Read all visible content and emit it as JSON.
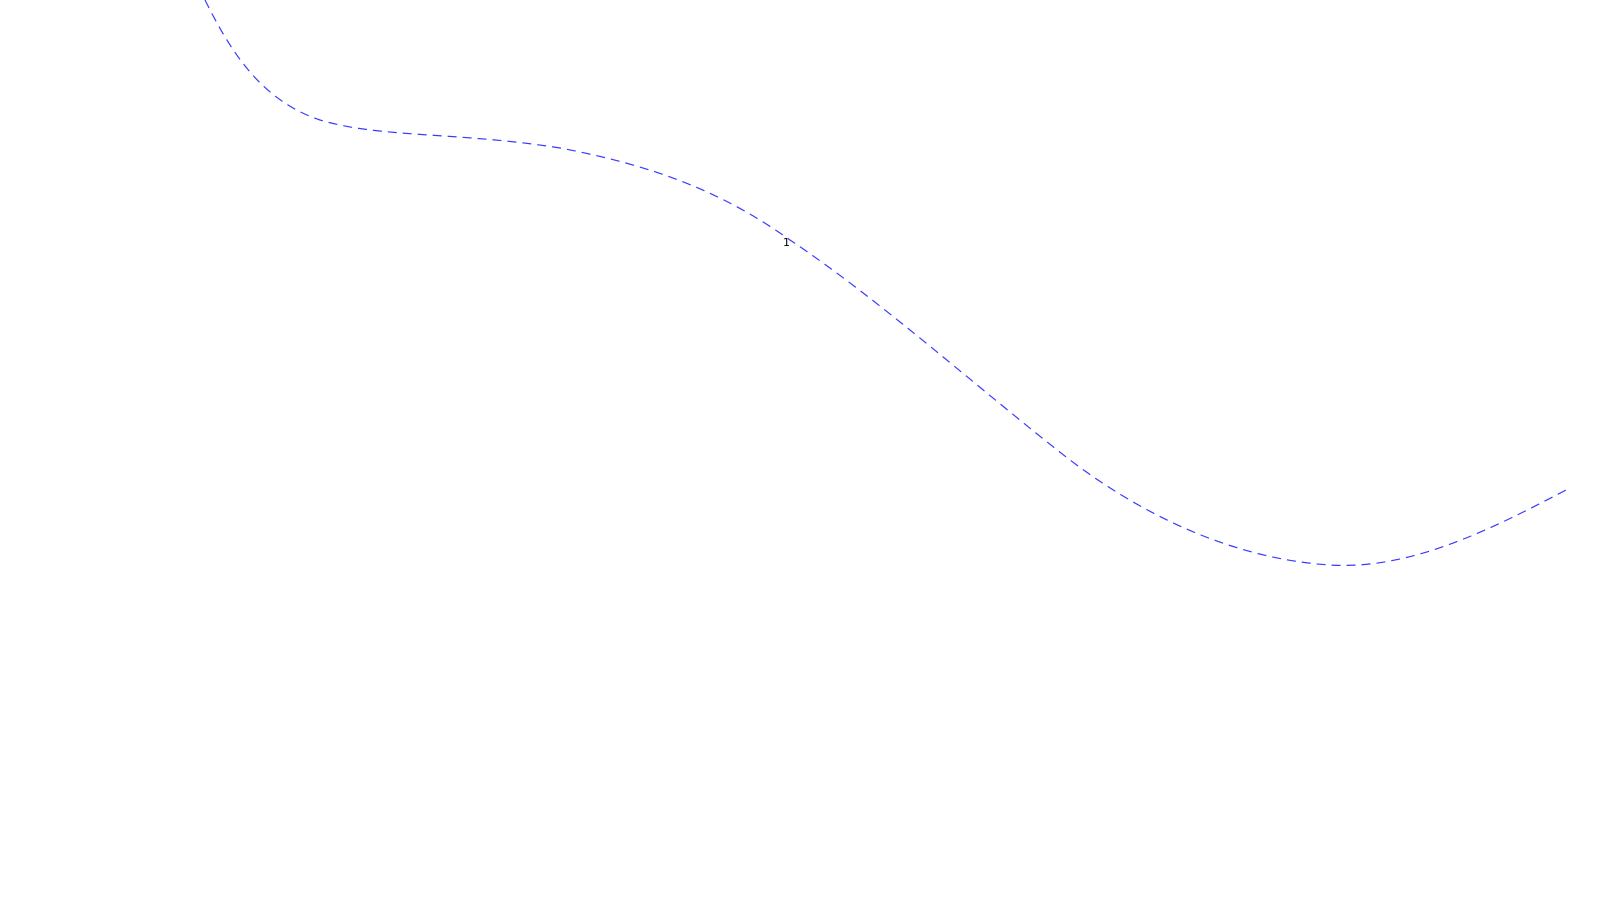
{
  "diagram": {
    "curve": {
      "style": "dashed",
      "color": "#3a3aff"
    },
    "label": {
      "text": "1",
      "color": "#000000"
    }
  }
}
